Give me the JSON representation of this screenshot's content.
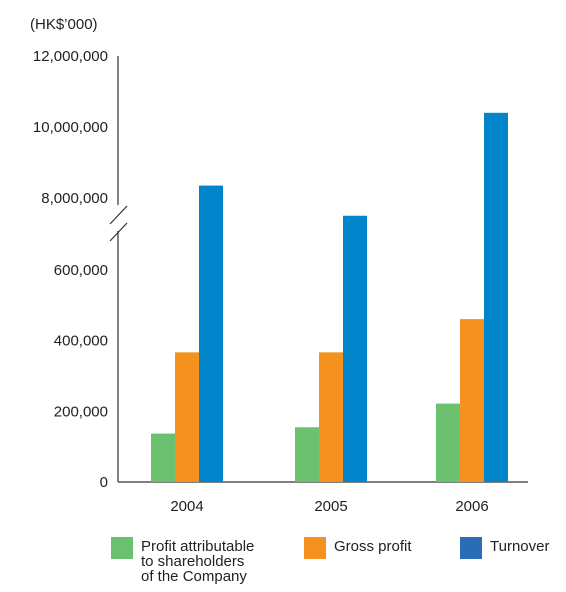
{
  "chart_data": {
    "type": "bar",
    "unit_label": "(HK$’000)",
    "categories": [
      "2004",
      "2005",
      "2006"
    ],
    "series": [
      {
        "name": "Profit attributable to shareholders of the Company",
        "color": "#6cc170",
        "values": [
          137000,
          155000,
          222000
        ]
      },
      {
        "name": "Gross profit",
        "color": "#f5911e",
        "values": [
          367000,
          367000,
          461000
        ]
      },
      {
        "name": "Turnover",
        "color": "#0085ca",
        "values": [
          8350000,
          7500000,
          10400000
        ]
      }
    ],
    "axis_break": true,
    "y_lower_range": [
      0,
      600000
    ],
    "y_lower_ticks": [
      "0",
      "200,000",
      "400,000",
      "600,000"
    ],
    "y_upper_range": [
      8000000,
      12000000
    ],
    "y_upper_ticks": [
      "8,000,000",
      "10,000,000",
      "12,000,000"
    ],
    "legend_position": "bottom",
    "grid": false
  },
  "legend": {
    "items": [
      {
        "label": "Profit attributable\nto shareholders\nof the Company",
        "color": "#6cc170"
      },
      {
        "label": "Gross profit",
        "color": "#f5911e"
      },
      {
        "label": "Turnover",
        "color": "#2b6cb7"
      }
    ]
  }
}
